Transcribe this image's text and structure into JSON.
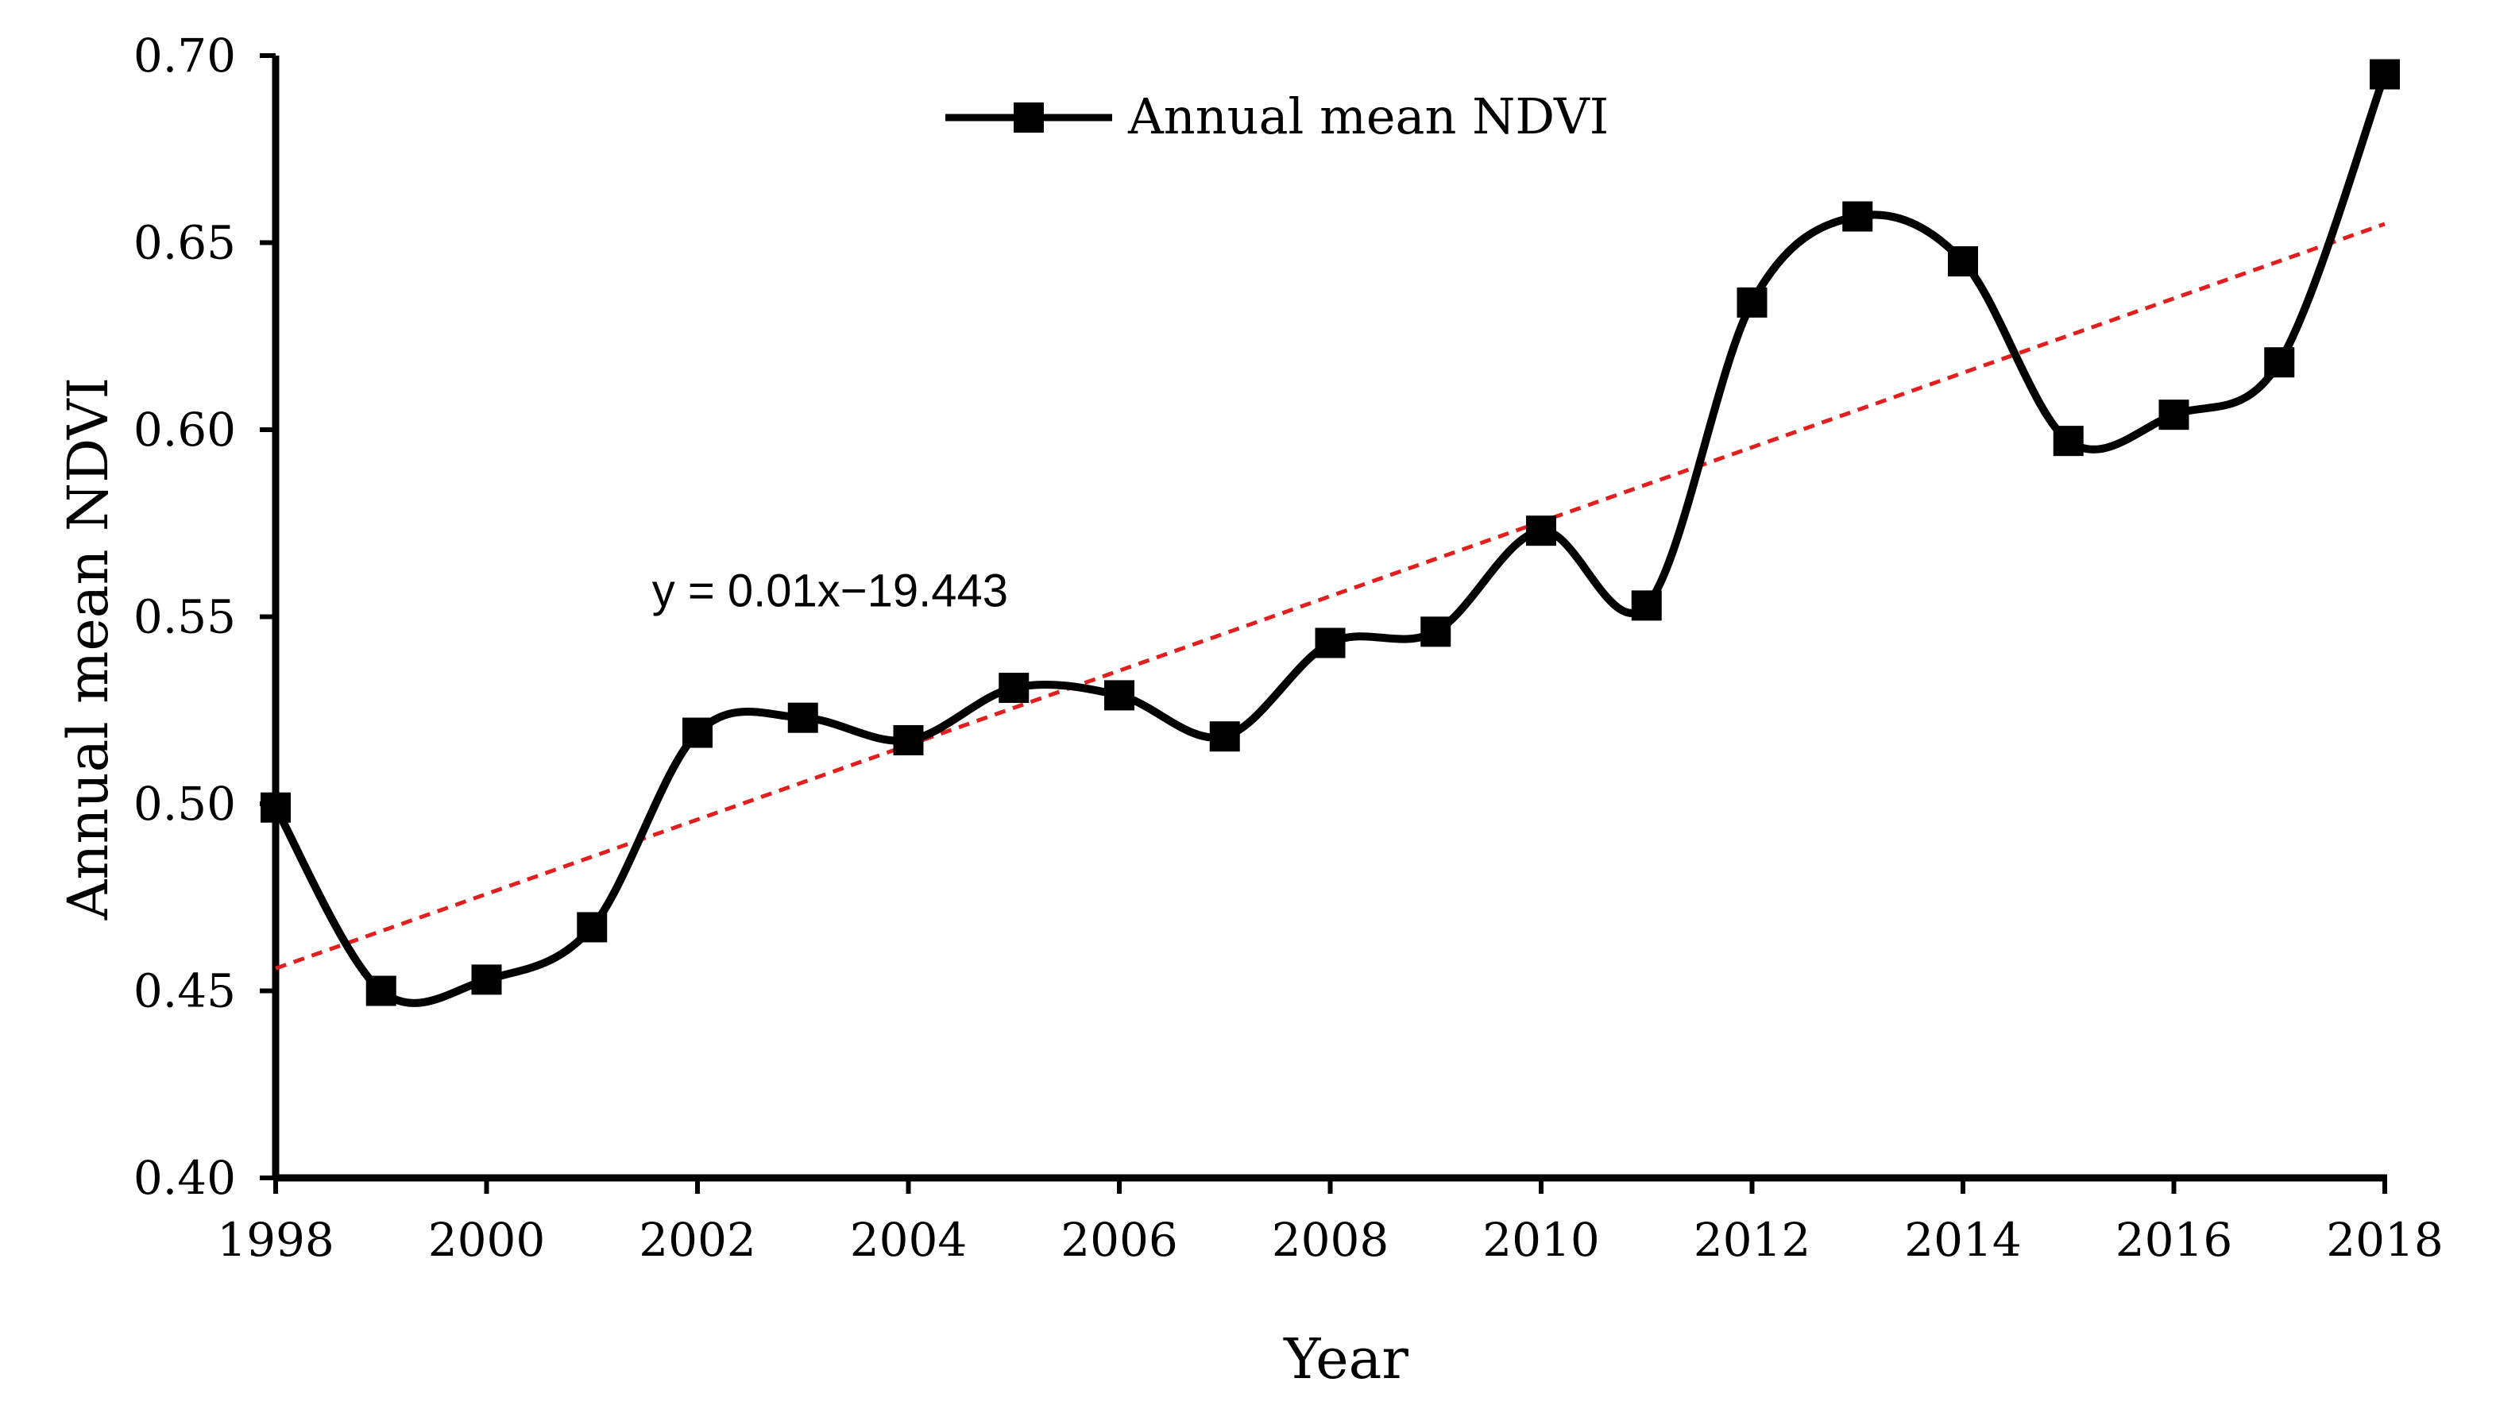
{
  "chart_data": {
    "type": "line",
    "title": "",
    "xlabel": "Year",
    "ylabel": "Annual mean NDVI",
    "xlim": [
      1998,
      2018
    ],
    "ylim": [
      0.4,
      0.7
    ],
    "x_ticks": [
      1998,
      2000,
      2002,
      2004,
      2006,
      2008,
      2010,
      2012,
      2014,
      2016,
      2018
    ],
    "x_tick_labels": [
      "1998",
      "2000",
      "2002",
      "2004",
      "2006",
      "2008",
      "2010",
      "2012",
      "2014",
      "2016",
      "2018"
    ],
    "y_ticks": [
      0.4,
      0.45,
      0.5,
      0.55,
      0.6,
      0.65,
      0.7
    ],
    "y_tick_labels": [
      "0.40",
      "0.45",
      "0.50",
      "0.55",
      "0.60",
      "0.65",
      "0.70"
    ],
    "grid": false,
    "legend": {
      "position": "top-center",
      "entries": [
        "Annual mean NDVI"
      ]
    },
    "series": [
      {
        "name": "Annual mean NDVI",
        "color": "#000000",
        "marker": "square",
        "smooth": true,
        "x": [
          1998,
          1999,
          2000,
          2001,
          2002,
          2003,
          2004,
          2005,
          2006,
          2007,
          2008,
          2009,
          2010,
          2011,
          2012,
          2013,
          2014,
          2015,
          2016,
          2017,
          2018
        ],
        "values": [
          0.499,
          0.45,
          0.453,
          0.467,
          0.519,
          0.523,
          0.517,
          0.531,
          0.529,
          0.518,
          0.543,
          0.546,
          0.573,
          0.553,
          0.634,
          0.657,
          0.645,
          0.597,
          0.604,
          0.618,
          0.695
        ]
      }
    ],
    "trendline": {
      "style": "dashed",
      "color": "#e02020",
      "x": [
        1998,
        2018
      ],
      "values": [
        0.456,
        0.655
      ]
    },
    "annotations": [
      {
        "text": "y = 0.01x−19.443",
        "x": 2003,
        "y": 0.557
      }
    ]
  }
}
